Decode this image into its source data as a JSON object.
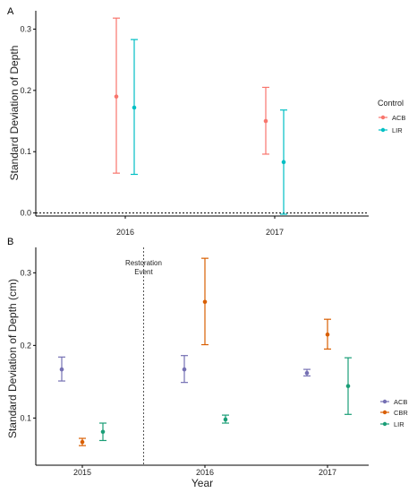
{
  "chart_data": [
    {
      "panel": "A",
      "type": "errorbar",
      "xlabel": "",
      "ylabel": "Standard Deviation of Depth",
      "categories": [
        "2016",
        "2017"
      ],
      "ylim": [
        -0.005,
        0.33
      ],
      "yticks": [
        0.0,
        0.1,
        0.2,
        0.3
      ],
      "ytick_labels": [
        "0.0",
        "0.1",
        "0.2",
        "0.3"
      ],
      "reference_line_y": 0.0,
      "legend_title": "Control",
      "legend_position": "right",
      "series": [
        {
          "name": "ACB",
          "color": "#F8766D",
          "points": [
            {
              "x": "2016",
              "y": 0.19,
              "ymin": 0.065,
              "ymax": 0.318
            },
            {
              "x": "2017",
              "y": 0.15,
              "ymin": 0.096,
              "ymax": 0.205
            }
          ]
        },
        {
          "name": "LIR",
          "color": "#00BFC4",
          "points": [
            {
              "x": "2016",
              "y": 0.172,
              "ymin": 0.063,
              "ymax": 0.283
            },
            {
              "x": "2017",
              "y": 0.083,
              "ymin": -0.002,
              "ymax": 0.168
            }
          ]
        }
      ]
    },
    {
      "panel": "B",
      "type": "errorbar",
      "xlabel": "Year",
      "ylabel": "Standard Deviation of Depth (cm)",
      "categories": [
        "2015",
        "2016",
        "2017"
      ],
      "ylim": [
        0.035,
        0.335
      ],
      "yticks": [
        0.1,
        0.2,
        0.3
      ],
      "ytick_labels": [
        "0.1",
        "0.2",
        "0.3"
      ],
      "annotation": {
        "lines": [
          "Restoration",
          "Event"
        ],
        "between": [
          "2015",
          "2016"
        ]
      },
      "legend_title": "",
      "legend_position": "right",
      "series": [
        {
          "name": "ACB",
          "color": "#7570B3",
          "points": [
            {
              "x": "2015",
              "y": 0.167,
              "ymin": 0.151,
              "ymax": 0.184
            },
            {
              "x": "2016",
              "y": 0.167,
              "ymin": 0.149,
              "ymax": 0.186
            },
            {
              "x": "2017",
              "y": 0.162,
              "ymin": 0.158,
              "ymax": 0.167
            }
          ]
        },
        {
          "name": "CBR",
          "color": "#D95F02",
          "points": [
            {
              "x": "2015",
              "y": 0.067,
              "ymin": 0.062,
              "ymax": 0.072
            },
            {
              "x": "2016",
              "y": 0.26,
              "ymin": 0.201,
              "ymax": 0.32
            },
            {
              "x": "2017",
              "y": 0.215,
              "ymin": 0.195,
              "ymax": 0.236
            }
          ]
        },
        {
          "name": "LIR",
          "color": "#1B9E77",
          "points": [
            {
              "x": "2015",
              "y": 0.081,
              "ymin": 0.069,
              "ymax": 0.093
            },
            {
              "x": "2016",
              "y": 0.098,
              "ymin": 0.093,
              "ymax": 0.104
            },
            {
              "x": "2017",
              "y": 0.144,
              "ymin": 0.105,
              "ymax": 0.183
            }
          ]
        }
      ]
    }
  ]
}
